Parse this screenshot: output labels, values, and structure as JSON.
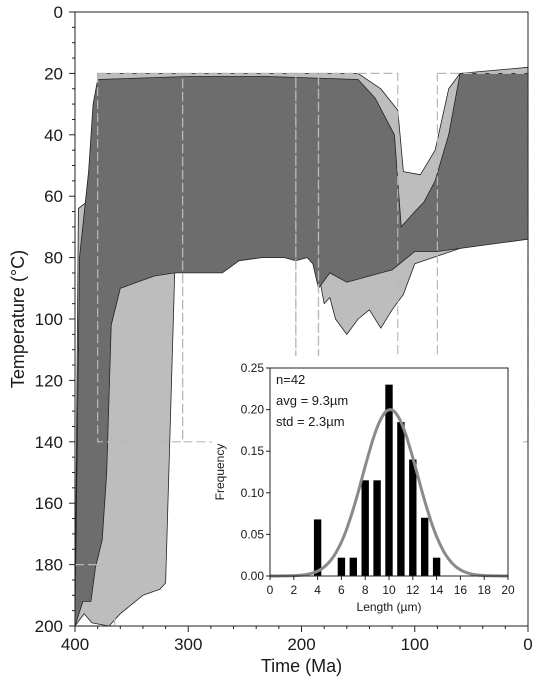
{
  "chart_data": [
    {
      "type": "area",
      "xlabel": "Time (Ma)",
      "ylabel": "Temperature (°C)",
      "xlim": [
        400,
        0
      ],
      "ylim": [
        0,
        200
      ],
      "y_inverted": true,
      "x_ticks": [
        "400",
        "300",
        "200",
        "100",
        "0"
      ],
      "y_ticks": [
        "0",
        "20",
        "40",
        "60",
        "80",
        "100",
        "120",
        "140",
        "160",
        "180",
        "200"
      ],
      "series": [
        {
          "role": "acceptable-fit envelope",
          "color": "#bdbdbd",
          "upper": [
            [
              400,
              200
            ],
            [
              397,
              64
            ],
            [
              390,
              62
            ],
            [
              382,
              52
            ],
            [
              380,
              20
            ],
            [
              300,
              20
            ],
            [
              230,
              20
            ],
            [
              150,
              20
            ],
            [
              130,
              25
            ],
            [
              115,
              32
            ],
            [
              110,
              52
            ],
            [
              95,
              53
            ],
            [
              82,
              45
            ],
            [
              70,
              25
            ],
            [
              60,
              20
            ],
            [
              0,
              18
            ]
          ],
          "lower": [
            [
              400,
              200
            ],
            [
              392,
              196
            ],
            [
              385,
              199
            ],
            [
              370,
              200
            ],
            [
              360,
              196
            ],
            [
              340,
              190
            ],
            [
              325,
              188
            ],
            [
              320,
              186
            ],
            [
              312,
              85
            ],
            [
              300,
              72
            ],
            [
              250,
              73
            ],
            [
              210,
              70
            ],
            [
              190,
              72
            ],
            [
              185,
              85
            ],
            [
              180,
              95
            ],
            [
              175,
              93
            ],
            [
              170,
              100
            ],
            [
              160,
              105
            ],
            [
              150,
              100
            ],
            [
              140,
              97
            ],
            [
              130,
              103
            ],
            [
              120,
              97
            ],
            [
              110,
              92
            ],
            [
              100,
              82
            ],
            [
              60,
              77
            ],
            [
              0,
              70
            ]
          ]
        },
        {
          "role": "good-fit envelope",
          "color": "#6d6d6d",
          "upper": [
            [
              400,
              200
            ],
            [
              396,
              80
            ],
            [
              388,
              52
            ],
            [
              384,
              30
            ],
            [
              380,
              22
            ],
            [
              300,
              21
            ],
            [
              230,
              21
            ],
            [
              150,
              22
            ],
            [
              135,
              28
            ],
            [
              118,
              40
            ],
            [
              112,
              70
            ],
            [
              100,
              65
            ],
            [
              92,
              62
            ],
            [
              82,
              55
            ],
            [
              70,
              40
            ],
            [
              60,
              20
            ],
            [
              0,
              20
            ]
          ],
          "lower": [
            [
              400,
              200
            ],
            [
              393,
              192
            ],
            [
              386,
              192
            ],
            [
              382,
              181
            ],
            [
              376,
              172
            ],
            [
              372,
              150
            ],
            [
              368,
              102
            ],
            [
              360,
              90
            ],
            [
              330,
              86
            ],
            [
              312,
              85
            ],
            [
              305,
              85
            ],
            [
              290,
              85
            ],
            [
              270,
              85
            ],
            [
              255,
              81
            ],
            [
              235,
              80
            ],
            [
              215,
              80
            ],
            [
              205,
              81
            ],
            [
              195,
              80
            ],
            [
              190,
              82
            ],
            [
              185,
              90
            ],
            [
              175,
              85
            ],
            [
              160,
              88
            ],
            [
              140,
              86
            ],
            [
              120,
              84
            ],
            [
              100,
              78
            ],
            [
              80,
              78
            ],
            [
              0,
              74
            ]
          ]
        }
      ],
      "constraint_boxes": [
        {
          "t_range": [
            380,
            305
          ],
          "T_range": [
            20,
            140
          ]
        },
        {
          "t_range": [
            305,
            205
          ],
          "T_range": [
            20,
            140
          ]
        },
        {
          "t_range": [
            205,
            185
          ],
          "T_range": [
            20,
            140
          ]
        },
        {
          "t_range": [
            185,
            115
          ],
          "T_range": [
            20,
            140
          ]
        },
        {
          "t_range": [
            80,
            0
          ],
          "T_range": [
            20,
            140
          ]
        },
        {
          "t_range": [
            400,
            365
          ],
          "T_range": [
            180,
            200
          ]
        }
      ]
    },
    {
      "type": "bar",
      "xlabel": "Length (µm)",
      "ylabel": "Frequency",
      "xlim": [
        0,
        20
      ],
      "ylim": [
        0,
        0.25
      ],
      "x_ticks": [
        "0",
        "2",
        "4",
        "6",
        "8",
        "10",
        "12",
        "14",
        "16",
        "18",
        "20"
      ],
      "y_ticks": [
        "0.00",
        "0.05",
        "0.10",
        "0.15",
        "0.20",
        "0.25"
      ],
      "annotations": [
        "n=42",
        "avg = 9.3µm",
        "std = 2.3µm"
      ],
      "bars": [
        [
          4,
          0.068
        ],
        [
          6,
          0.022
        ],
        [
          7,
          0.022
        ],
        [
          8,
          0.115
        ],
        [
          9,
          0.115
        ],
        [
          10,
          0.23
        ],
        [
          11,
          0.185
        ],
        [
          12,
          0.14
        ],
        [
          13,
          0.07
        ],
        [
          14,
          0.022
        ]
      ],
      "fit_curve": {
        "type": "normal",
        "mean": 10.1,
        "std": 2.3,
        "peak": 0.2,
        "color": "#8a8a8a"
      }
    }
  ]
}
